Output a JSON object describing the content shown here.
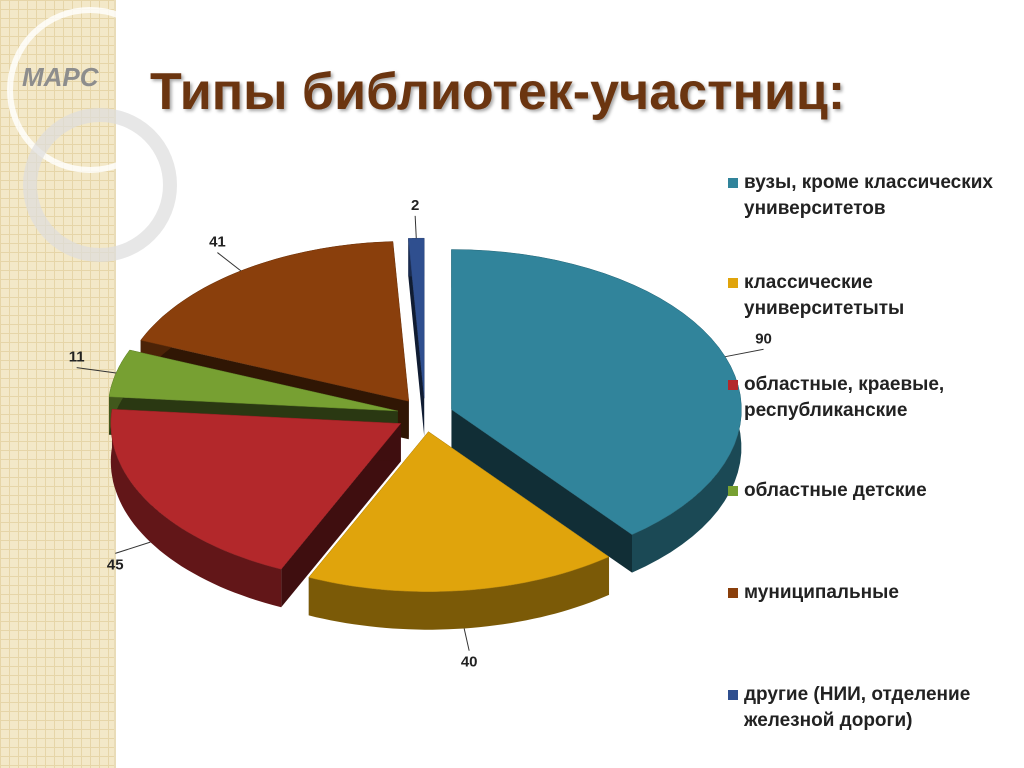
{
  "logo": "МАРС",
  "chart_data": {
    "type": "pie3d",
    "title": "Типы библиотек-участниц:",
    "categories": [
      "вузы, кроме классических университетов",
      "классические университетыты",
      "областные, краевые, республиканские",
      "областные детские",
      "муниципальные",
      "другие (НИИ, отделение железной дороги)"
    ],
    "values": [
      90,
      40,
      45,
      11,
      41,
      2
    ],
    "colors": [
      "#31849b",
      "#e0a40c",
      "#b3282b",
      "#77a032",
      "#8a3f0c",
      "#2f4f8f"
    ],
    "legend": "right"
  }
}
